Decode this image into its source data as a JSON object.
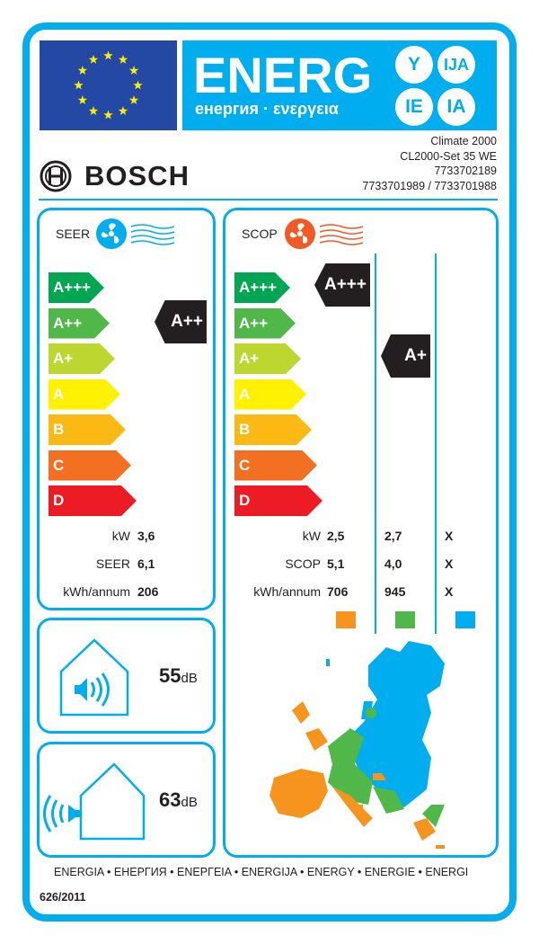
{
  "header": {
    "energy_word": "ENERG",
    "energy_sub": "енергия · ενεργεια",
    "suffixes": [
      "Y",
      "IJA",
      "IE",
      "IA"
    ]
  },
  "product": {
    "brand": "BOSCH",
    "model_lines": [
      "Climate 2000",
      "CL2000-Set 35 WE",
      "7733702189",
      "7733701989 / 7733701988"
    ]
  },
  "classes": [
    "A+++",
    "A++",
    "A+",
    "A",
    "B",
    "C",
    "D"
  ],
  "class_colors": [
    "#00a651",
    "#50b848",
    "#bed630",
    "#fff200",
    "#fdb913",
    "#f36f21",
    "#ed1c24"
  ],
  "cooling": {
    "title": "SEER",
    "rating": "A++",
    "rows": [
      {
        "label": "kW",
        "value": "3,6"
      },
      {
        "label": "SEER",
        "value": "6,1"
      },
      {
        "label": "kWh/annum",
        "value": "206"
      }
    ]
  },
  "heating": {
    "title": "SCOP",
    "ratings": [
      "A+++",
      "A+"
    ],
    "rows": [
      {
        "label": "kW",
        "values": [
          "2,5",
          "2,7",
          "X"
        ]
      },
      {
        "label": "SCOP",
        "values": [
          "5,1",
          "4,0",
          "X"
        ]
      },
      {
        "label": "kWh/annum",
        "values": [
          "706",
          "945",
          "X"
        ]
      }
    ],
    "zone_colors": [
      "#f7941d",
      "#50b848",
      "#00aeef"
    ]
  },
  "noise": {
    "indoor": {
      "value": "55",
      "unit": "dB"
    },
    "outdoor": {
      "value": "63",
      "unit": "dB"
    }
  },
  "footer": {
    "languages": "ENERGIA • ЕНЕРГИЯ • ΕΝΕΡΓΕΙΑ • ENERGIJA • ENERGY • ENERGIE • ENERGI",
    "regulation": "626/2011"
  },
  "colors": {
    "accent": "#00aeef",
    "flag": "#2349a5",
    "star": "#ffed00",
    "heat": "#f15a24"
  }
}
